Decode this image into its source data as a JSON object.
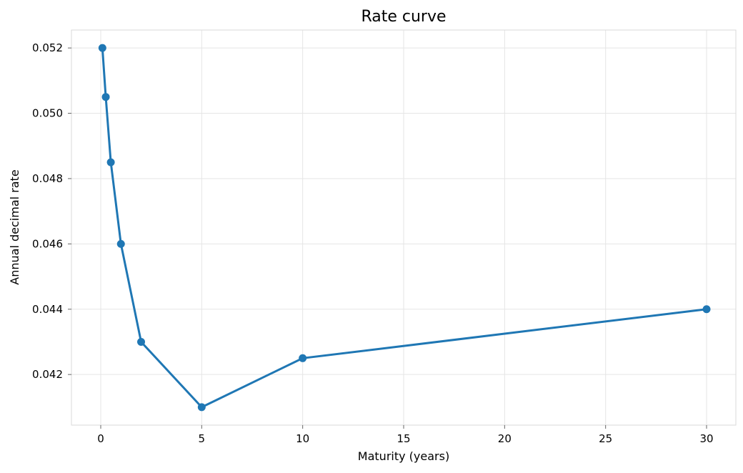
{
  "chart_data": {
    "type": "line",
    "title": "Rate curve",
    "xlabel": "Maturity (years)",
    "ylabel": "Annual decimal rate",
    "xlim": [
      -1.45,
      31.45
    ],
    "ylim": [
      0.04045,
      0.05255
    ],
    "xticks": [
      0,
      5,
      10,
      15,
      20,
      25,
      30
    ],
    "xtick_labels": [
      "0",
      "5",
      "10",
      "15",
      "20",
      "25",
      "30"
    ],
    "yticks": [
      0.042,
      0.044,
      0.046,
      0.048,
      0.05,
      0.052
    ],
    "ytick_labels": [
      "0.042",
      "0.044",
      "0.046",
      "0.048",
      "0.050",
      "0.052"
    ],
    "grid": true,
    "series": [
      {
        "x": [
          0.083,
          0.25,
          0.5,
          1,
          2,
          5,
          10,
          30
        ],
        "y": [
          0.052,
          0.0505,
          0.0485,
          0.046,
          0.043,
          0.041,
          0.0425,
          0.044
        ],
        "color": "#1f77b4",
        "marker": "circle"
      }
    ]
  }
}
